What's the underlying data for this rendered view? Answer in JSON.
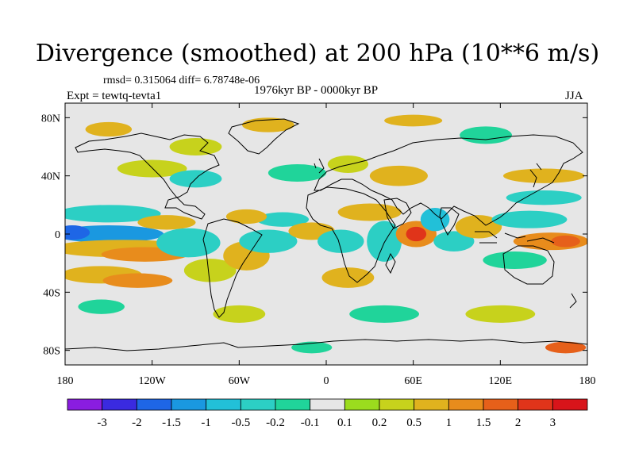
{
  "chart_data": {
    "type": "contour-map",
    "title": "Divergence (smoothed) at 200 hPa (10**6 m/s)",
    "stats": "rmsd= 0.315064  diff= 6.78748e-06",
    "experiment": "Expt = tewtq-tevta1",
    "period": "1976kyr BP - 0000kyr BP",
    "season": "JJA",
    "xaxis": {
      "ticks": [
        "180",
        "120W",
        "60W",
        "0",
        "60E",
        "120E",
        "180"
      ],
      "values": [
        -180,
        -120,
        -60,
        0,
        60,
        120,
        180
      ]
    },
    "yaxis": {
      "ticks": [
        "80N",
        "40N",
        "0",
        "40S",
        "80S"
      ],
      "values": [
        80,
        40,
        0,
        -40,
        -80
      ]
    },
    "xlim": [
      -180,
      180
    ],
    "ylim": [
      -90,
      90
    ],
    "levels": [
      -3,
      -2,
      -1.5,
      -1,
      -0.5,
      -0.2,
      -0.1,
      0.1,
      0.2,
      0.5,
      1,
      1.5,
      2,
      3
    ],
    "level_labels": [
      "-3",
      "-2",
      "-1.5",
      "-1",
      "-0.5",
      "-0.2",
      "-0.1",
      "0.1",
      "0.2",
      "0.5",
      "1",
      "1.5",
      "2",
      "3"
    ],
    "colors": [
      "#8a1de0",
      "#3a2ae0",
      "#1e66e6",
      "#1a98e0",
      "#22c0d8",
      "#2ccfc4",
      "#20d49a",
      "#e6e6e6",
      "#9bdc1e",
      "#c7d21c",
      "#e0b21e",
      "#e88c1c",
      "#e6601a",
      "#e0341a",
      "#d8141a"
    ],
    "features": [
      {
        "lon": -150,
        "lat": 0,
        "rx": 38,
        "ry": 6,
        "level": -1.5
      },
      {
        "lon": -175,
        "lat": 1,
        "rx": 12,
        "ry": 5,
        "level": -2
      },
      {
        "lon": -140,
        "lat": -10,
        "rx": 50,
        "ry": 6,
        "level": 0.5
      },
      {
        "lon": -125,
        "lat": -14,
        "rx": 30,
        "ry": 5,
        "level": 1
      },
      {
        "lon": -155,
        "lat": -28,
        "rx": 28,
        "ry": 6,
        "level": 0.5
      },
      {
        "lon": -130,
        "lat": -32,
        "rx": 24,
        "ry": 5,
        "level": 1
      },
      {
        "lon": -150,
        "lat": 14,
        "rx": 36,
        "ry": 6,
        "level": -0.5
      },
      {
        "lon": -110,
        "lat": 8,
        "rx": 20,
        "ry": 5,
        "level": 0.5
      },
      {
        "lon": -95,
        "lat": -6,
        "rx": 22,
        "ry": 10,
        "level": -0.5
      },
      {
        "lon": -80,
        "lat": -25,
        "rx": 18,
        "ry": 8,
        "level": 0.2
      },
      {
        "lon": -55,
        "lat": -15,
        "rx": 16,
        "ry": 10,
        "level": 0.5
      },
      {
        "lon": -40,
        "lat": -5,
        "rx": 20,
        "ry": 8,
        "level": -0.5
      },
      {
        "lon": -30,
        "lat": 10,
        "rx": 18,
        "ry": 5,
        "level": -0.5
      },
      {
        "lon": -55,
        "lat": 12,
        "rx": 14,
        "ry": 5,
        "level": 0.5
      },
      {
        "lon": -10,
        "lat": 2,
        "rx": 16,
        "ry": 6,
        "level": 0.5
      },
      {
        "lon": 10,
        "lat": -5,
        "rx": 16,
        "ry": 8,
        "level": -0.5
      },
      {
        "lon": 15,
        "lat": -30,
        "rx": 18,
        "ry": 7,
        "level": 0.5
      },
      {
        "lon": 30,
        "lat": 15,
        "rx": 22,
        "ry": 6,
        "level": 0.5
      },
      {
        "lon": 40,
        "lat": -5,
        "rx": 12,
        "ry": 14,
        "level": -0.5
      },
      {
        "lon": 62,
        "lat": 0,
        "rx": 14,
        "ry": 9,
        "level": 1
      },
      {
        "lon": 62,
        "lat": 0,
        "rx": 7,
        "ry": 5,
        "level": 2
      },
      {
        "lon": 75,
        "lat": 10,
        "rx": 10,
        "ry": 8,
        "level": -1
      },
      {
        "lon": 88,
        "lat": -5,
        "rx": 14,
        "ry": 7,
        "level": -0.5
      },
      {
        "lon": 105,
        "lat": 5,
        "rx": 16,
        "ry": 8,
        "level": 0.5
      },
      {
        "lon": 140,
        "lat": 10,
        "rx": 26,
        "ry": 6,
        "level": -0.5
      },
      {
        "lon": 150,
        "lat": 25,
        "rx": 26,
        "ry": 5,
        "level": -0.5
      },
      {
        "lon": 155,
        "lat": -5,
        "rx": 26,
        "ry": 6,
        "level": 1
      },
      {
        "lon": 165,
        "lat": -5,
        "rx": 10,
        "ry": 4,
        "level": 1.5
      },
      {
        "lon": 130,
        "lat": -18,
        "rx": 22,
        "ry": 6,
        "level": -0.2
      },
      {
        "lon": 150,
        "lat": 40,
        "rx": 28,
        "ry": 5,
        "level": 0.5
      },
      {
        "lon": -120,
        "lat": 45,
        "rx": 24,
        "ry": 6,
        "level": 0.2
      },
      {
        "lon": -90,
        "lat": 38,
        "rx": 18,
        "ry": 6,
        "level": -0.5
      },
      {
        "lon": -20,
        "lat": 42,
        "rx": 20,
        "ry": 6,
        "level": -0.2
      },
      {
        "lon": 15,
        "lat": 48,
        "rx": 14,
        "ry": 6,
        "level": 0.2
      },
      {
        "lon": 50,
        "lat": 40,
        "rx": 20,
        "ry": 7,
        "level": 0.5
      },
      {
        "lon": -150,
        "lat": 72,
        "rx": 16,
        "ry": 5,
        "level": 0.5
      },
      {
        "lon": -90,
        "lat": 60,
        "rx": 18,
        "ry": 6,
        "level": 0.2
      },
      {
        "lon": -40,
        "lat": 75,
        "rx": 18,
        "ry": 5,
        "level": 0.5
      },
      {
        "lon": 60,
        "lat": 78,
        "rx": 20,
        "ry": 4,
        "level": 0.5
      },
      {
        "lon": 110,
        "lat": 68,
        "rx": 18,
        "ry": 6,
        "level": -0.2
      },
      {
        "lon": -155,
        "lat": -50,
        "rx": 16,
        "ry": 5,
        "level": -0.2
      },
      {
        "lon": -60,
        "lat": -55,
        "rx": 18,
        "ry": 6,
        "level": 0.2
      },
      {
        "lon": 40,
        "lat": -55,
        "rx": 24,
        "ry": 6,
        "level": -0.2
      },
      {
        "lon": 120,
        "lat": -55,
        "rx": 24,
        "ry": 6,
        "level": 0.2
      },
      {
        "lon": 165,
        "lat": -78,
        "rx": 14,
        "ry": 4,
        "level": 1.5
      },
      {
        "lon": -10,
        "lat": -78,
        "rx": 14,
        "ry": 4,
        "level": -0.2
      }
    ]
  }
}
